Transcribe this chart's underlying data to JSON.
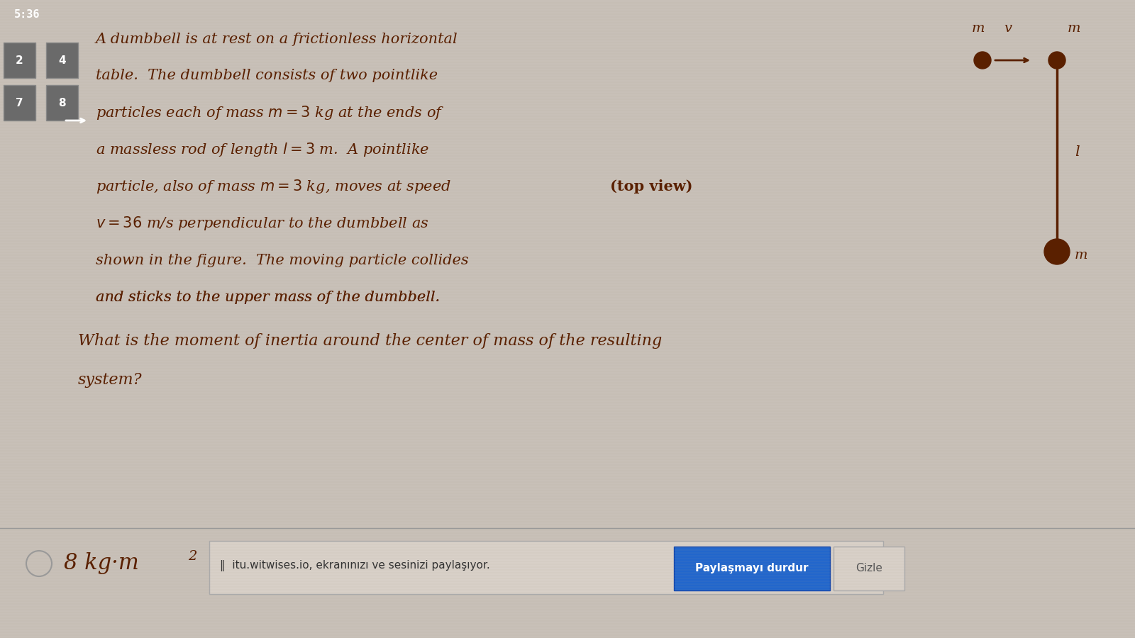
{
  "bg_color": "#c8c0b8",
  "text_color": "#5a2000",
  "title_bar_color": "#2a2a2a",
  "main_text_lines": [
    "A dumbbell is at rest on a frictionless horizontal",
    "table.  The dumbbell consists of two pointlike",
    "particles each of mass $m = 3$ kg at the ends of",
    "a massless rod of length $l = 3$ m.  A pointlike",
    "particle, also of mass $m = 3$ kg, moves at speed",
    "$v = 36$ m/s perpendicular to the dumbbell as",
    "shown in the figure.  The moving particle collides",
    "and sticks to the upper mass of the dumbbell."
  ],
  "bold_words_line5": "(top view)",
  "question_lines": [
    "What is the moment of inertia around the center of mass of the resulting",
    "system?"
  ],
  "answer_text": "8 kg·m",
  "answer_superscript": "2",
  "toolbar_text": "‖  itu.witwises.io, ekranınızı ve sesinizi paylaşıyor.",
  "button_text": "Paylaşmayı durdur",
  "button2_text": "Gizle",
  "time_text": "5:36",
  "nav_buttons": [
    "2",
    "4",
    "7",
    "8"
  ],
  "diagram_top_m_label": "m",
  "diagram_top_v_label": "v",
  "diagram_bottom_m_label": "m",
  "diagram_l_label": "l",
  "diagram_top_view_label": "(top view)"
}
